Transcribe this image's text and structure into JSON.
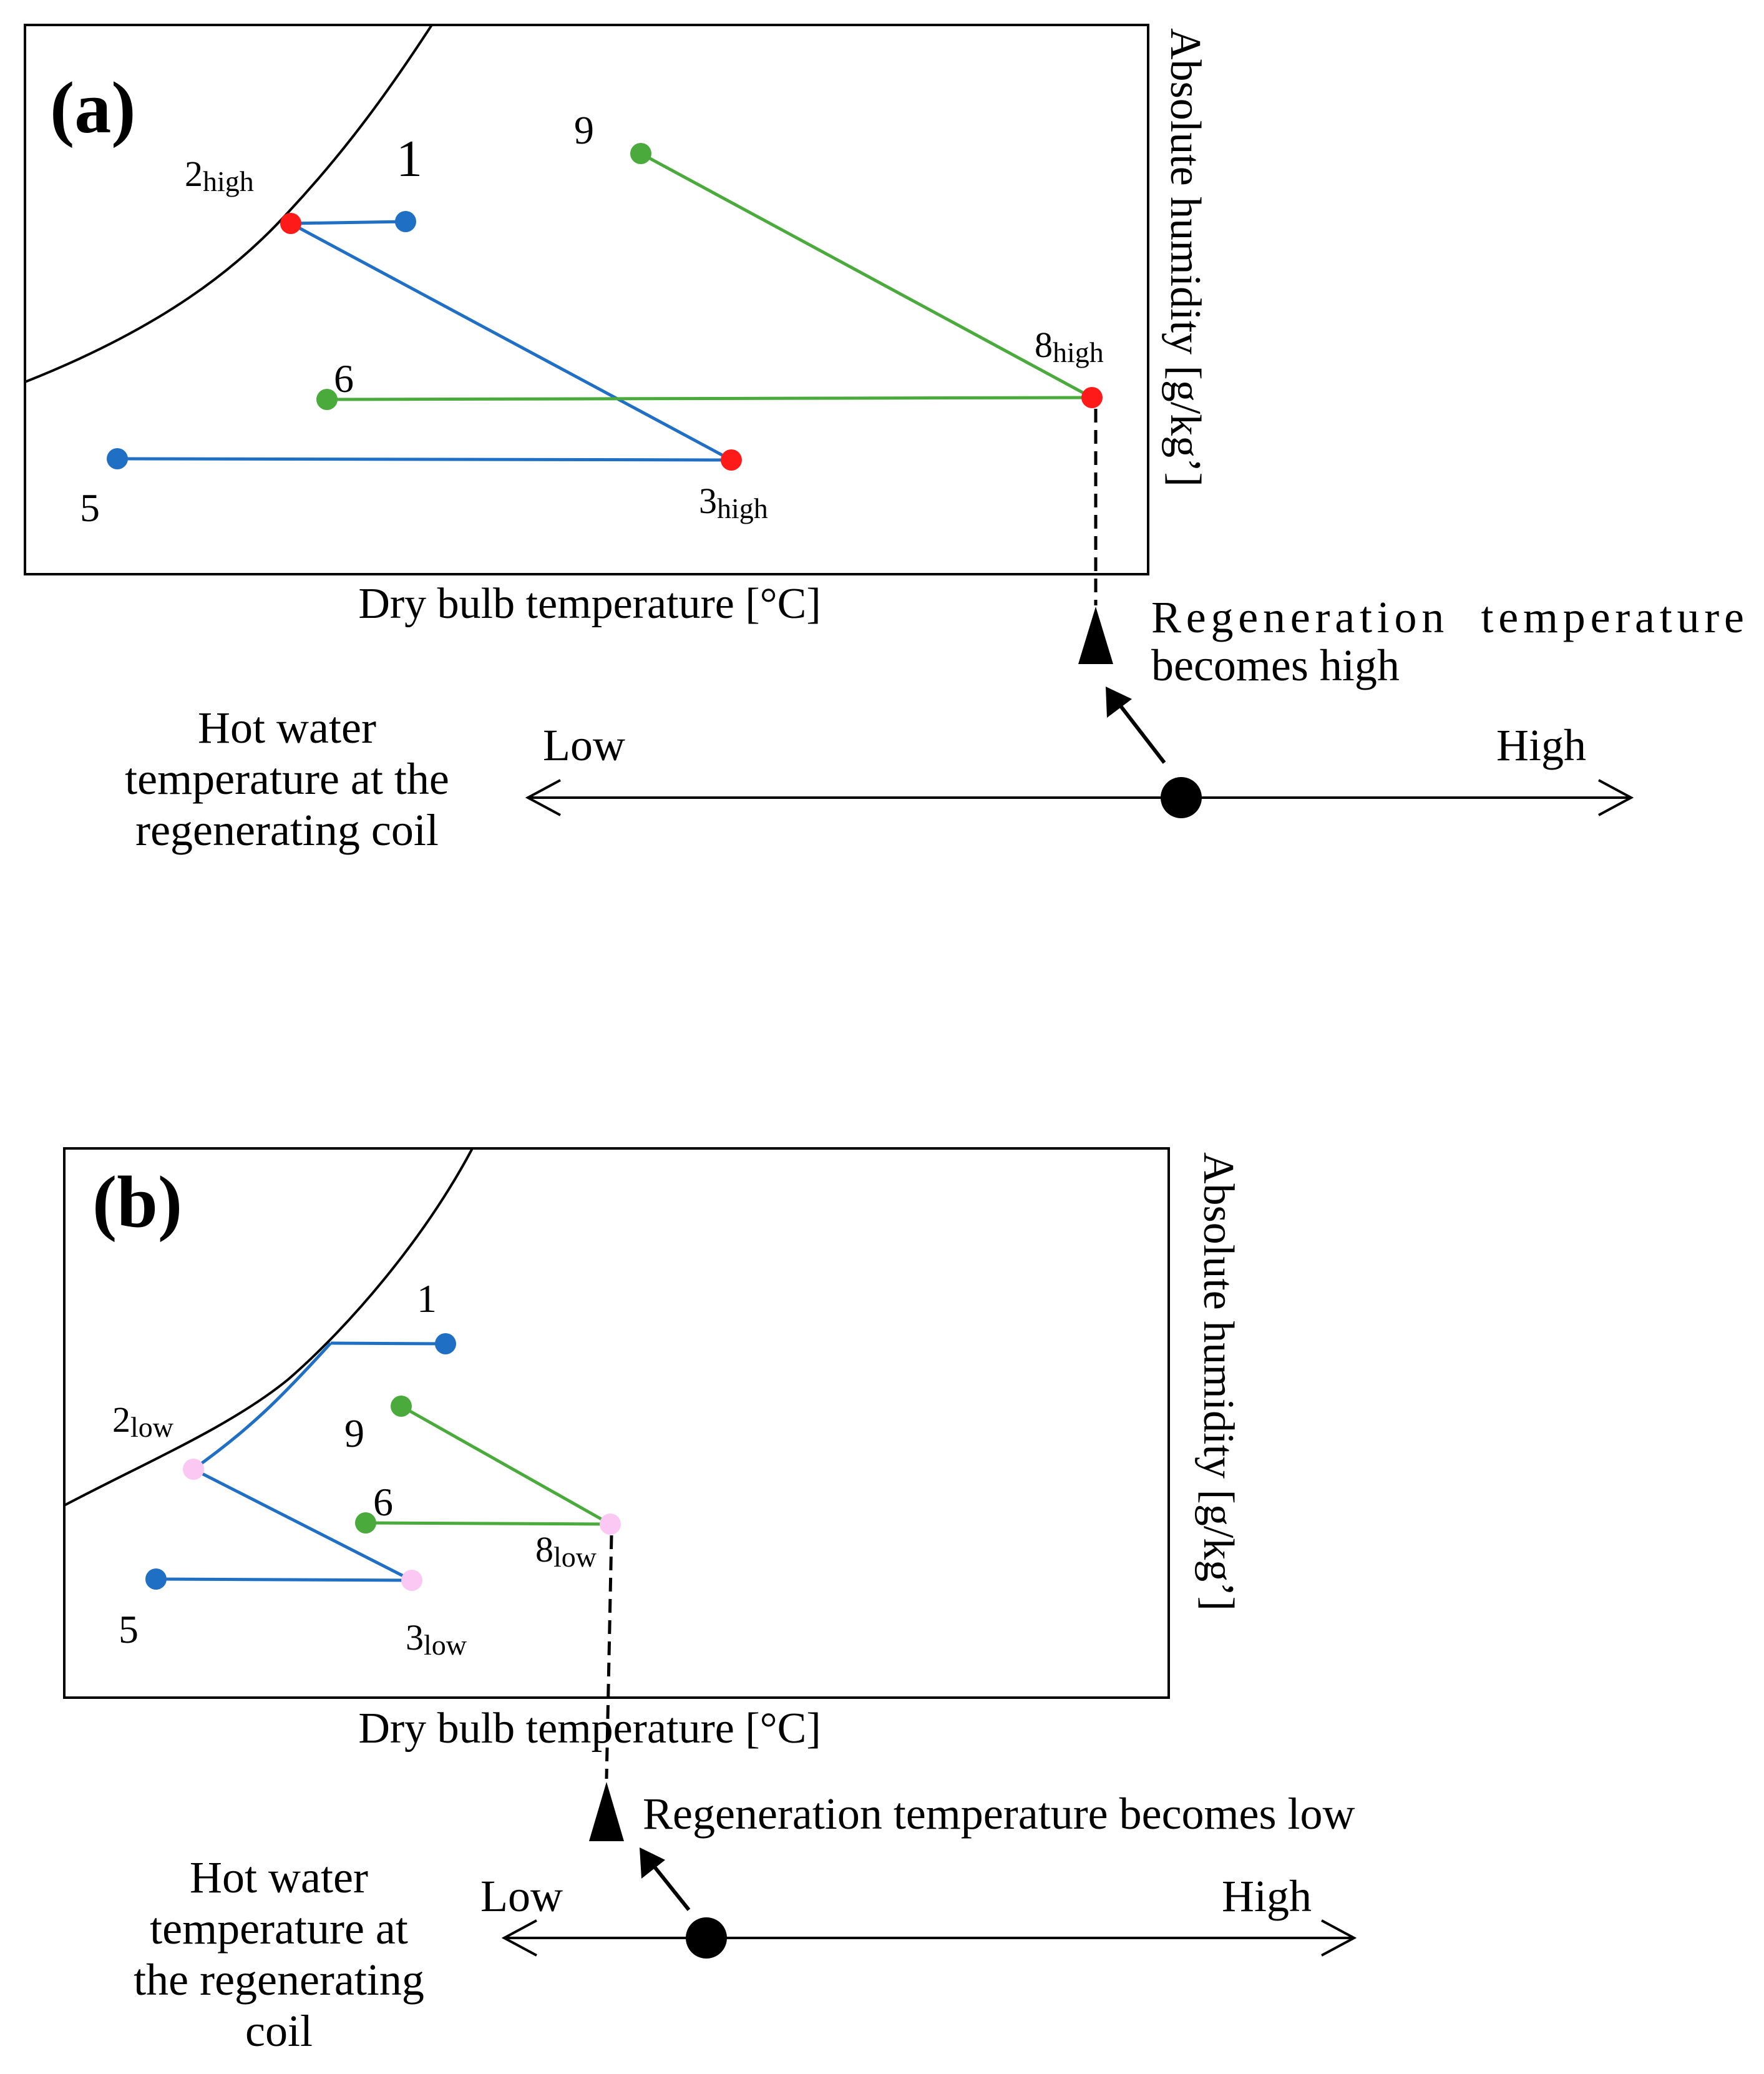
{
  "colors": {
    "blue": "#1f6fc4",
    "green": "#4aaa3c",
    "red": "#ff1a1a",
    "pink": "#fbc8f4",
    "black": "#000000"
  },
  "panel_a": {
    "label": "(a)",
    "xlabel": "Dry bulb temperature [°C]",
    "ylabel": "Absolute humidity [g/kg’]",
    "points": {
      "p1": "1",
      "p2": {
        "base": "2",
        "sub": "high"
      },
      "p3": {
        "base": "3",
        "sub": "high"
      },
      "p5": "5",
      "p6": "6",
      "p8": {
        "base": "8",
        "sub": "high"
      },
      "p9": "9"
    },
    "note_line1": "Regeneration  temperature",
    "note_line2": "becomes high",
    "scale": {
      "title": [
        "Hot water",
        "temperature at the",
        "regenerating coil"
      ],
      "low": "Low",
      "high": "High"
    }
  },
  "panel_b": {
    "label": "(b)",
    "xlabel": "Dry bulb temperature [°C]",
    "ylabel": "Absolute humidity [g/kg’]",
    "points": {
      "p1": "1",
      "p2": {
        "base": "2",
        "sub": "low"
      },
      "p3": {
        "base": "3",
        "sub": "low"
      },
      "p5": "5",
      "p6": "6",
      "p8": {
        "base": "8",
        "sub": "low"
      },
      "p9": "9"
    },
    "note": "Regeneration temperature becomes low",
    "scale": {
      "title": [
        "Hot water",
        "temperature at",
        "the regenerating",
        "coil"
      ],
      "low": "Low",
      "high": "High"
    }
  }
}
